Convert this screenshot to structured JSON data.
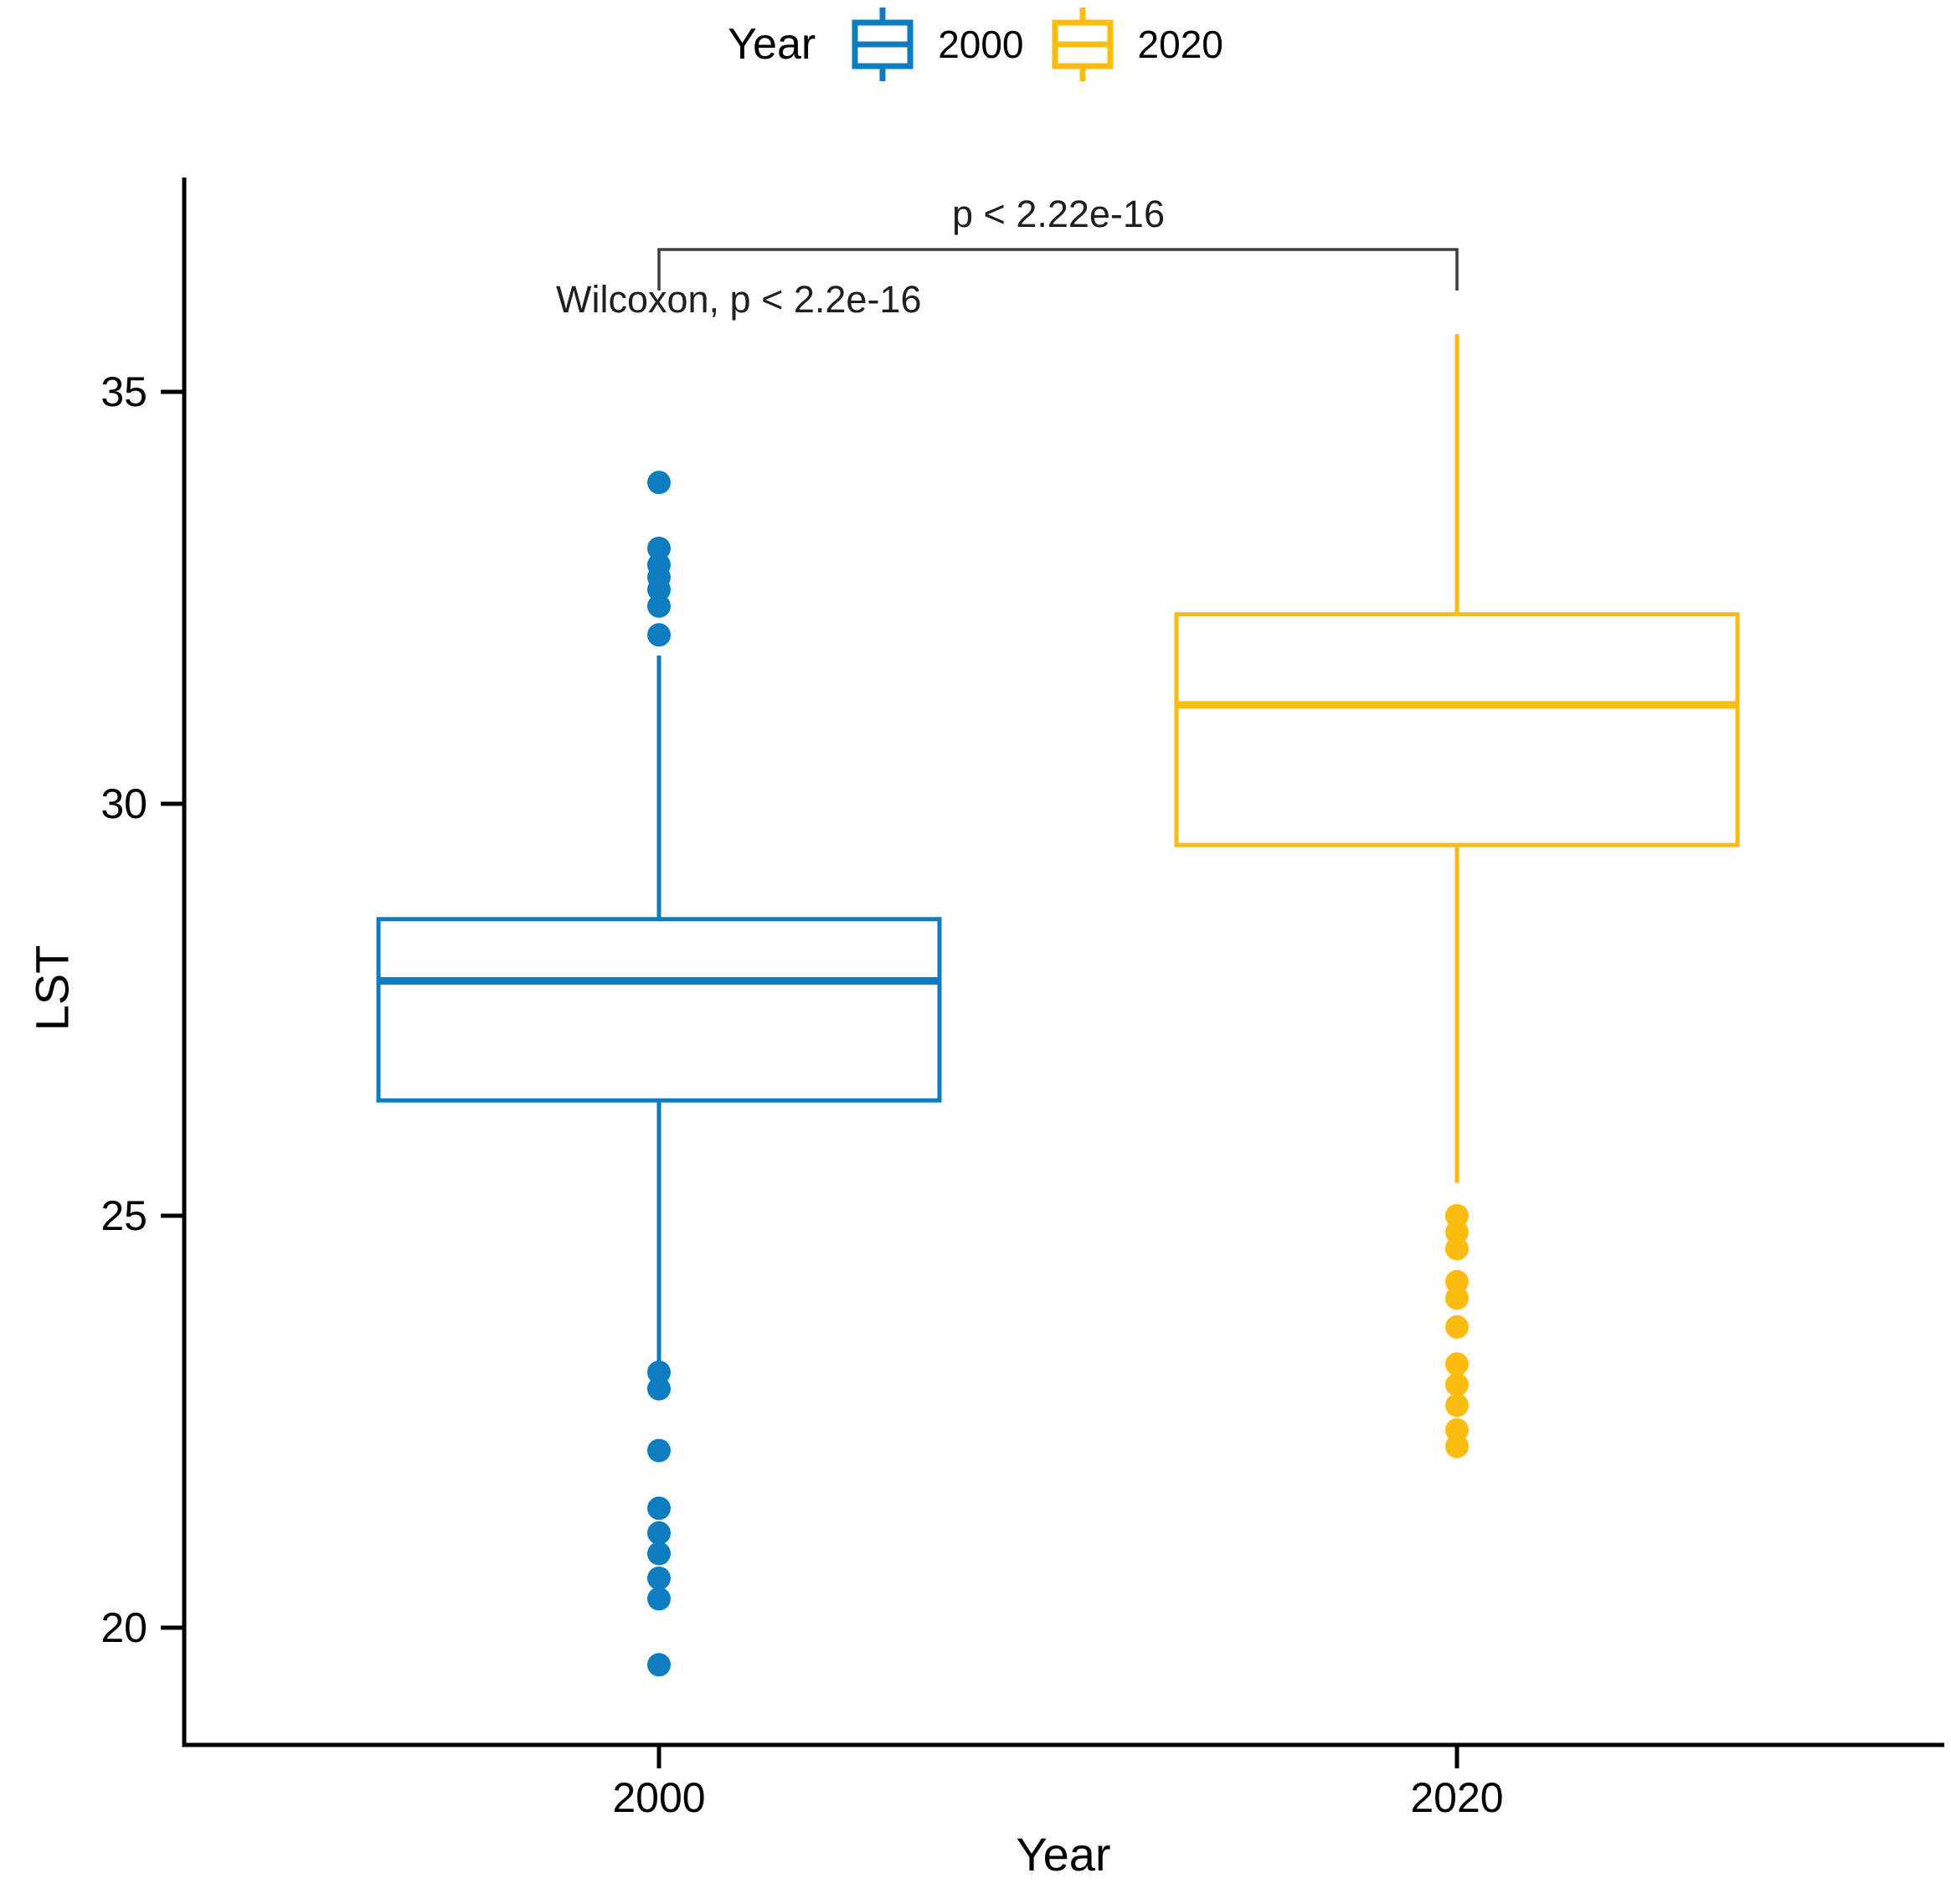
{
  "chart_data": {
    "type": "boxplot",
    "xlabel": "Year",
    "ylabel": "LST",
    "yticks": [
      20,
      25,
      30,
      35
    ],
    "ylim": [
      18.6,
      37.5
    ],
    "grid": false,
    "categories": [
      "2000",
      "2020"
    ],
    "legend": {
      "title": "Year",
      "position": "top"
    },
    "series": [
      {
        "name": "2000",
        "color": "#0d7cc1",
        "stats": {
          "whisker_low": 23.2,
          "q1": 26.4,
          "median": 27.85,
          "q3": 28.6,
          "whisker_high": 31.8
        },
        "outliers": [
          33.9,
          33.1,
          32.9,
          32.75,
          32.6,
          32.4,
          32.05,
          23.1,
          22.9,
          22.15,
          21.45,
          21.15,
          20.9,
          20.6,
          20.35,
          19.55
        ]
      },
      {
        "name": "2020",
        "color": "#fbbc10",
        "stats": {
          "whisker_low": 25.4,
          "q1": 29.5,
          "median": 31.2,
          "q3": 32.3,
          "whisker_high": 35.7
        },
        "outliers": [
          25.0,
          24.8,
          24.6,
          24.2,
          24.0,
          23.65,
          23.2,
          22.95,
          22.7,
          22.4,
          22.2
        ]
      }
    ],
    "annotations": {
      "comparison_pvalue": "p < 2.22e-16",
      "test_label": "Wilcoxon, p < 2.2e-16"
    }
  }
}
